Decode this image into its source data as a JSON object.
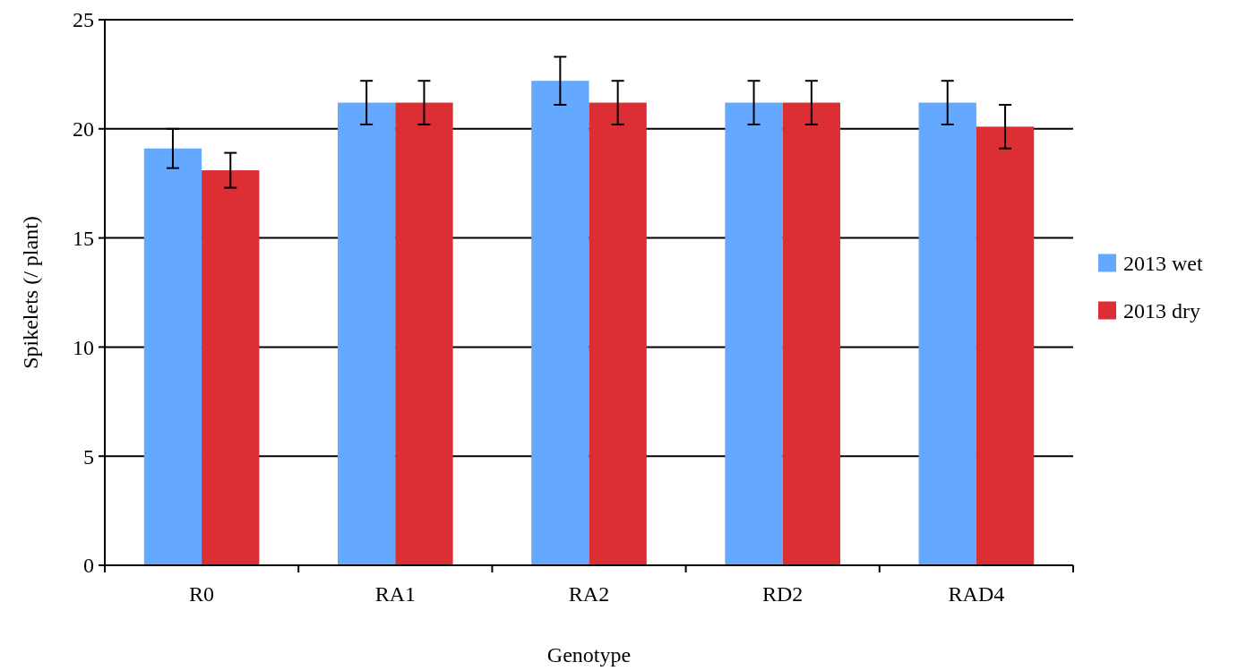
{
  "chart_data": {
    "type": "bar",
    "xlabel": "Genotype",
    "ylabel": "Spikelets (/ plant)",
    "categories": [
      "R0",
      "RA1",
      "RA2",
      "RD2",
      "RAD4"
    ],
    "series": [
      {
        "name": "2013 wet",
        "color": "#64a8ff",
        "values": [
          19.1,
          21.2,
          22.2,
          21.2,
          21.2
        ],
        "errors": [
          0.9,
          1.0,
          1.1,
          1.0,
          1.0
        ]
      },
      {
        "name": "2013 dry",
        "color": "#dc2e35",
        "values": [
          18.1,
          21.2,
          21.2,
          21.2,
          20.1
        ],
        "errors": [
          0.8,
          1.0,
          1.0,
          1.0,
          1.0
        ]
      }
    ],
    "ylim": [
      0,
      25
    ],
    "yticks": [
      0,
      5,
      10,
      15,
      20,
      25
    ],
    "grid": "y",
    "legend": "right"
  }
}
